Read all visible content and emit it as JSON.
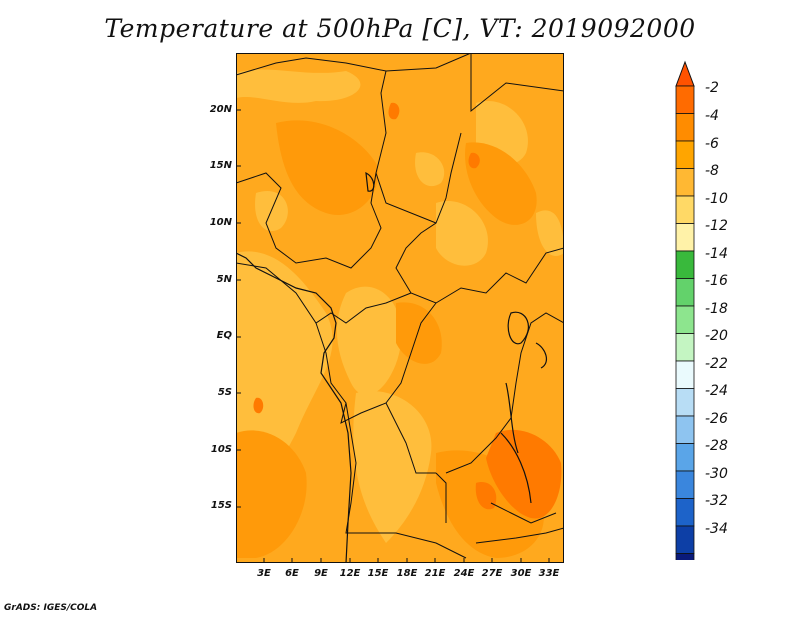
{
  "title": "Temperature at 500hPa [C], VT: 2019092000",
  "credit": "GrADS: IGES/COLA",
  "map": {
    "lat_labels": [
      "20N",
      "15N",
      "10N",
      "5N",
      "EQ",
      "5S",
      "10S",
      "15S"
    ],
    "lon_labels": [
      "3E",
      "6E",
      "9E",
      "12E",
      "15E",
      "18E",
      "21E",
      "24E",
      "27E",
      "30E",
      "33E"
    ]
  },
  "colorbar": {
    "labels": [
      "-2",
      "-4",
      "-6",
      "-8",
      "-10",
      "-12",
      "-14",
      "-16",
      "-18",
      "-20",
      "-22",
      "-24",
      "-26",
      "-28",
      "-30",
      "-32",
      "-34"
    ],
    "colors": [
      "#ff6b00",
      "#ff8c00",
      "#ffa500",
      "#ffb833",
      "#ffd966",
      "#fff2a8",
      "#39b93c",
      "#63d26b",
      "#8de58e",
      "#c4f5c2",
      "#eafafd",
      "#b8ddf5",
      "#8ec4f0",
      "#5aa5e8",
      "#3a86dd",
      "#1d63c9",
      "#0d3fa6",
      "#0a1a7a"
    ],
    "top_color": "#ff5200",
    "bottom_color": "#d8d8f0"
  }
}
